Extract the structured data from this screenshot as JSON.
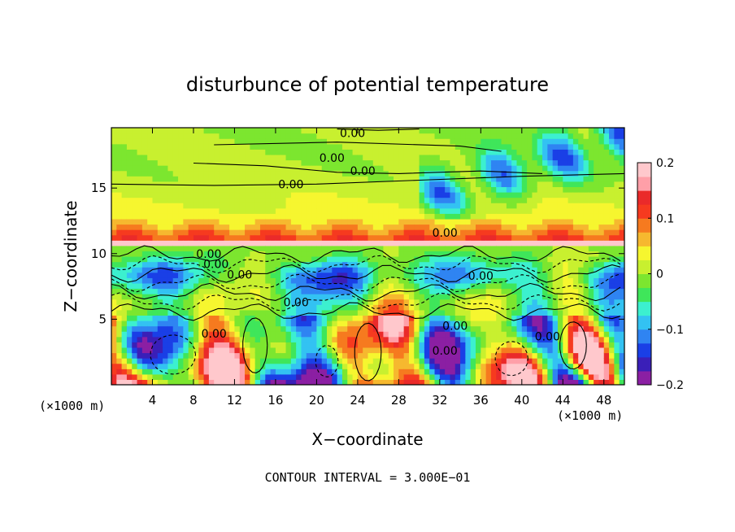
{
  "chart_data": {
    "type": "heatmap",
    "title": "disturbunce of potential temperature",
    "xlabel": "X−coordinate",
    "ylabel": "Z−coordinate",
    "x_unit_left": "(×1000 m)",
    "x_unit_right": "(×1000 m)",
    "xlim": [
      0,
      50
    ],
    "ylim": [
      0,
      19.6
    ],
    "x_ticks": [
      4,
      8,
      12,
      16,
      20,
      24,
      28,
      32,
      36,
      40,
      44,
      48
    ],
    "y_ticks": [
      5,
      10,
      15
    ],
    "colorbar": {
      "range": [
        -0.2,
        0.2
      ],
      "ticks": [
        0.2,
        0.1,
        0,
        -0.1,
        -0.2
      ],
      "tick_labels": [
        "0.2",
        "0.1",
        "0",
        "−0.1",
        "−0.2"
      ],
      "colors": [
        "#8b1fa3",
        "#3a1fb8",
        "#1a3fe6",
        "#2f84f2",
        "#33c2f2",
        "#3cf0cf",
        "#3fe65a",
        "#7ce62f",
        "#c8f02f",
        "#f6f62f",
        "#f6b82f",
        "#f67a1f",
        "#f63a1f",
        "#ea2a2a",
        "#ff9fa8",
        "#ffc8cc"
      ]
    },
    "contour_labels": [
      "0.00",
      "0.00",
      "0.00",
      "0.00",
      "0.00",
      "0.00",
      "0.00",
      "0.00",
      "0.00",
      "0.00",
      "0.00",
      "0.00",
      "0.00",
      "0.00"
    ],
    "footer": "CONTOUR INTERVAL = 3.000E−01"
  }
}
